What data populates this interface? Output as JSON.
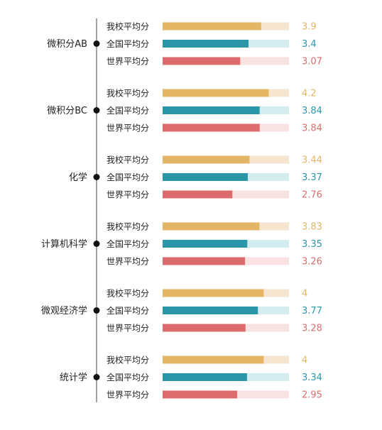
{
  "chart_data": {
    "type": "bar",
    "orientation": "horizontal",
    "title": "",
    "xlabel": "",
    "ylabel": "",
    "xlim": [
      0,
      5
    ],
    "grid": false,
    "legend": "none",
    "series": [
      {
        "name": "我校平均分",
        "color": "#e3b665",
        "track_color": "#f6e6cf"
      },
      {
        "name": "全国平均分",
        "color": "#2997a8",
        "track_color": "#d3ecf0"
      },
      {
        "name": "世界平均分",
        "color": "#dd6b6b",
        "track_color": "#f9e2e2"
      }
    ],
    "categories": [
      "微积分AB",
      "微积分BC",
      "化学",
      "计算机科学",
      "微观经济学",
      "统计学"
    ],
    "values": [
      [
        3.9,
        3.4,
        3.07
      ],
      [
        4.2,
        3.84,
        3.84
      ],
      [
        3.44,
        3.37,
        2.76
      ],
      [
        3.83,
        3.35,
        3.26
      ],
      [
        4,
        3.77,
        3.28
      ],
      [
        4,
        3.34,
        2.95
      ]
    ],
    "value_labels": [
      [
        "3.9",
        "3.4",
        "3.07"
      ],
      [
        "4.2",
        "3.84",
        "3.84"
      ],
      [
        "3.44",
        "3.37",
        "2.76"
      ],
      [
        "3.83",
        "3.35",
        "3.26"
      ],
      [
        "4",
        "3.77",
        "3.28"
      ],
      [
        "4",
        "3.34",
        "2.95"
      ]
    ]
  }
}
